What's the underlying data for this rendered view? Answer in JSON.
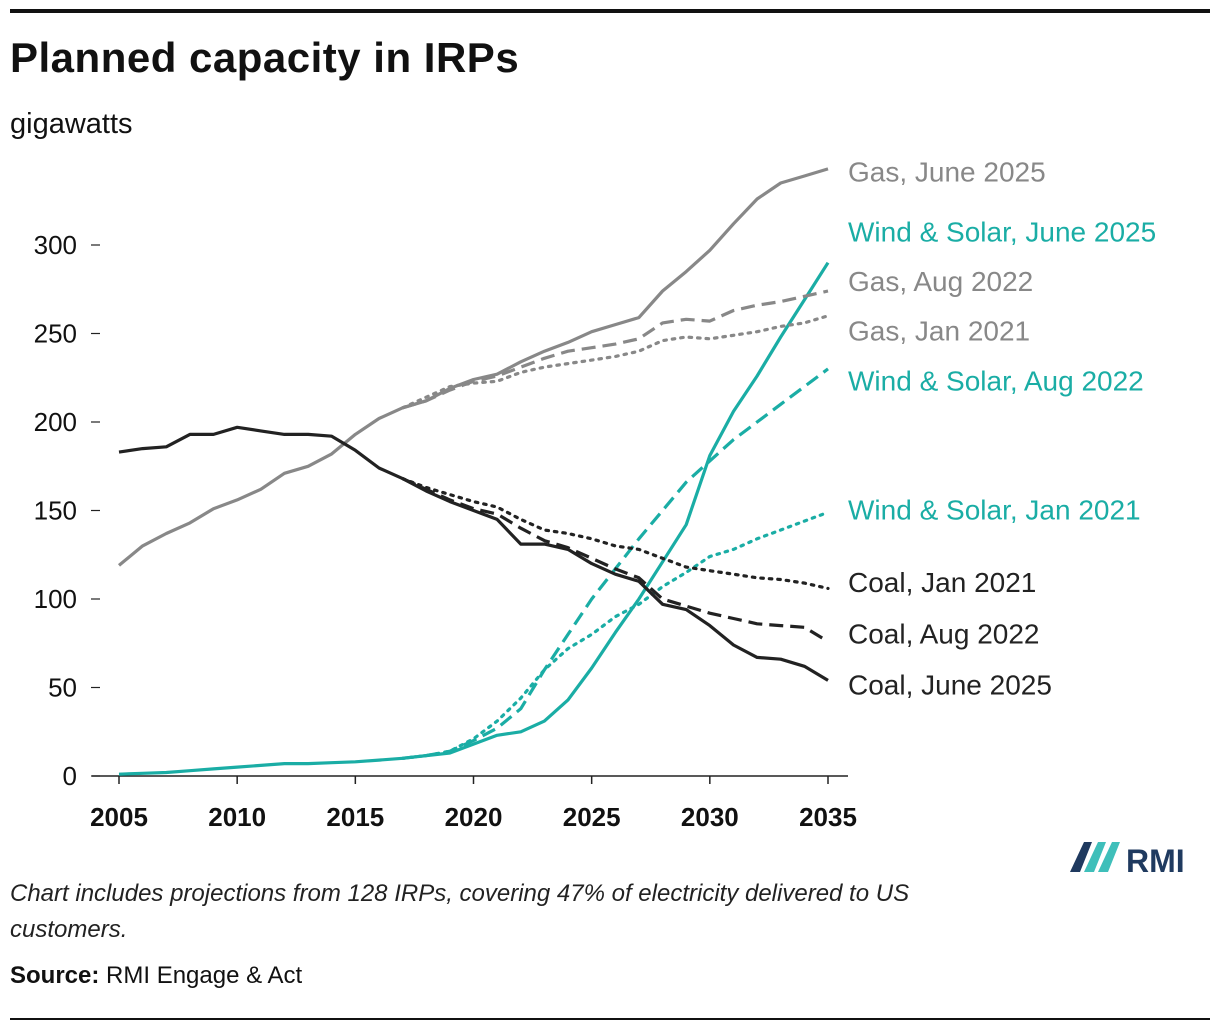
{
  "header": {
    "title": "Planned capacity in IRPs",
    "subtitle": "gigawatts"
  },
  "footer": {
    "note": "Chart includes projections from 128 IRPs, covering 47% of electricity delivered to US customers.",
    "source_label": "Source:",
    "source_text": "RMI Engage & Act"
  },
  "logo": {
    "text": "RMI",
    "colors": {
      "navy": "#1f3a5f",
      "teal": "#3fbfba"
    }
  },
  "colors": {
    "gas": "#888888",
    "wind_solar": "#1aada5",
    "coal": "#222222"
  },
  "chart_data": {
    "type": "line",
    "title": "Planned capacity in IRPs",
    "ylabel": "gigawatts",
    "xlabel": "",
    "xlim": [
      2005,
      2035
    ],
    "ylim": [
      0,
      340
    ],
    "xticks": [
      2005,
      2010,
      2015,
      2020,
      2025,
      2030,
      2035
    ],
    "yticks": [
      0,
      50,
      100,
      150,
      200,
      250,
      300
    ],
    "grid": false,
    "legend": "direct labels at line ends (right)",
    "series": [
      {
        "name": "Gas, June 2025",
        "group": "gas",
        "style": "solid",
        "x": [
          2005,
          2006,
          2007,
          2008,
          2009,
          2010,
          2011,
          2012,
          2013,
          2014,
          2015,
          2016,
          2017,
          2018,
          2019,
          2020,
          2021,
          2022,
          2023,
          2024,
          2025,
          2026,
          2027,
          2028,
          2029,
          2030,
          2031,
          2032,
          2033,
          2034,
          2035
        ],
        "y": [
          119,
          130,
          137,
          143,
          151,
          156,
          162,
          171,
          175,
          182,
          193,
          202,
          208,
          212,
          219,
          224,
          227,
          234,
          240,
          245,
          251,
          255,
          259,
          274,
          285,
          297,
          312,
          326,
          335,
          339,
          343
        ]
      },
      {
        "name": "Wind & Solar, June 2025",
        "group": "wind_solar",
        "style": "solid",
        "x": [
          2005,
          2006,
          2007,
          2008,
          2009,
          2010,
          2011,
          2012,
          2013,
          2014,
          2015,
          2016,
          2017,
          2018,
          2019,
          2020,
          2021,
          2022,
          2023,
          2024,
          2025,
          2026,
          2027,
          2028,
          2029,
          2030,
          2031,
          2032,
          2033,
          2034,
          2035
        ],
        "y": [
          1,
          1.5,
          2,
          3,
          4,
          5,
          6,
          7,
          7,
          7.5,
          8,
          9,
          10,
          11.5,
          13,
          18,
          23,
          25,
          31,
          43,
          61,
          81,
          100,
          121,
          142,
          181,
          206,
          226,
          248,
          269,
          290
        ]
      },
      {
        "name": "Gas, Aug 2022",
        "group": "gas",
        "style": "dashed",
        "x": [
          2017,
          2018,
          2019,
          2020,
          2021,
          2022,
          2023,
          2024,
          2025,
          2026,
          2027,
          2028,
          2029,
          2030,
          2031,
          2032,
          2033,
          2034,
          2035
        ],
        "y": [
          208,
          212,
          218,
          223,
          226,
          231,
          236,
          240,
          242,
          244,
          247,
          256,
          258,
          257,
          263,
          266,
          268,
          271,
          274
        ]
      },
      {
        "name": "Gas, Jan 2021",
        "group": "gas",
        "style": "dotted",
        "x": [
          2017,
          2018,
          2019,
          2020,
          2021,
          2022,
          2023,
          2024,
          2025,
          2026,
          2027,
          2028,
          2029,
          2030,
          2031,
          2032,
          2033,
          2034,
          2035
        ],
        "y": [
          208,
          214,
          220,
          222,
          223,
          228,
          231,
          233,
          235,
          237,
          240,
          246,
          248,
          247,
          249,
          251,
          254,
          256,
          260
        ]
      },
      {
        "name": "Wind & Solar, Aug 2022",
        "group": "wind_solar",
        "style": "dashed",
        "x": [
          2017,
          2018,
          2019,
          2020,
          2021,
          2022,
          2023,
          2024,
          2025,
          2026,
          2027,
          2028,
          2029,
          2030,
          2031,
          2032,
          2033,
          2034,
          2035
        ],
        "y": [
          10,
          11.5,
          14,
          20,
          27,
          38,
          60,
          80,
          100,
          117,
          134,
          150,
          166,
          178,
          190,
          200,
          210,
          220,
          230
        ]
      },
      {
        "name": "Wind & Solar, Jan 2021",
        "group": "wind_solar",
        "style": "dotted",
        "x": [
          2017,
          2018,
          2019,
          2020,
          2021,
          2022,
          2023,
          2024,
          2025,
          2026,
          2027,
          2028,
          2029,
          2030,
          2031,
          2032,
          2033,
          2034,
          2035
        ],
        "y": [
          10,
          11.5,
          14,
          21,
          31,
          44,
          60,
          72,
          80,
          90,
          97,
          107,
          115,
          124,
          128,
          134,
          139,
          144,
          149
        ]
      },
      {
        "name": "Coal, Jan 2021",
        "group": "coal",
        "style": "dotted",
        "x": [
          2017,
          2018,
          2019,
          2020,
          2021,
          2022,
          2023,
          2024,
          2025,
          2026,
          2027,
          2028,
          2029,
          2030,
          2031,
          2032,
          2033,
          2034,
          2035
        ],
        "y": [
          168,
          163,
          159,
          155,
          152,
          145,
          139,
          137,
          134,
          130,
          128,
          123,
          118,
          116,
          114,
          112,
          111,
          109,
          106
        ]
      },
      {
        "name": "Coal, Aug 2022",
        "group": "coal",
        "style": "dashed",
        "x": [
          2017,
          2018,
          2019,
          2020,
          2021,
          2022,
          2023,
          2024,
          2025,
          2026,
          2027,
          2028,
          2029,
          2030,
          2031,
          2032,
          2033,
          2034,
          2035
        ],
        "y": [
          168,
          162,
          156,
          151,
          148,
          140,
          133,
          129,
          123,
          117,
          112,
          100,
          96,
          92,
          89,
          86,
          85,
          84,
          76
        ]
      },
      {
        "name": "Coal, June 2025",
        "group": "coal",
        "style": "solid",
        "x": [
          2005,
          2006,
          2007,
          2008,
          2009,
          2010,
          2011,
          2012,
          2013,
          2014,
          2015,
          2016,
          2017,
          2018,
          2019,
          2020,
          2021,
          2022,
          2023,
          2024,
          2025,
          2026,
          2027,
          2028,
          2029,
          2030,
          2031,
          2032,
          2033,
          2034,
          2035
        ],
        "y": [
          183,
          185,
          186,
          193,
          193,
          197,
          195,
          193,
          193,
          192,
          184,
          174,
          168,
          161,
          155,
          150,
          145,
          131,
          131,
          128,
          120,
          114,
          110,
          97,
          94,
          85,
          74,
          67,
          66,
          62,
          54
        ]
      }
    ],
    "labels": [
      {
        "text": "Gas, June 2025",
        "group": "gas",
        "y": 341
      },
      {
        "text": "Wind & Solar, June 2025",
        "group": "wind_solar",
        "y": 307
      },
      {
        "text": "Gas, Aug 2022",
        "group": "gas",
        "y": 279
      },
      {
        "text": "Gas, Jan 2021",
        "group": "gas",
        "y": 251
      },
      {
        "text": "Wind & Solar, Aug 2022",
        "group": "wind_solar",
        "y": 223
      },
      {
        "text": "Wind & Solar, Jan 2021",
        "group": "wind_solar",
        "y": 150
      },
      {
        "text": "Coal, Jan 2021",
        "group": "coal",
        "y": 109
      },
      {
        "text": "Coal, Aug 2022",
        "group": "coal",
        "y": 80
      },
      {
        "text": "Coal, June 2025",
        "group": "coal",
        "y": 51
      }
    ]
  }
}
